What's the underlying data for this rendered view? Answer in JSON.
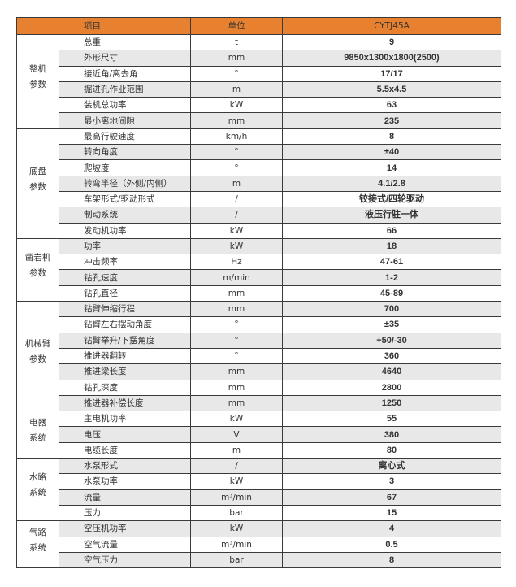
{
  "colors": {
    "header_bg": "#E8812F",
    "alt_row": "#e8e8e8"
  },
  "header": {
    "item": "项目",
    "unit": "单位",
    "value": "CYTJ45A"
  },
  "groups": [
    {
      "name": [
        "整机",
        "参数"
      ],
      "rows": [
        {
          "item": "总重",
          "unit": "t",
          "value": "9"
        },
        {
          "item": "外形尺寸",
          "unit": "mm",
          "value": "9850x1300x1800(2500)"
        },
        {
          "item": "接近角/离去角",
          "unit": "°",
          "value": "17/17"
        },
        {
          "item": "掘进孔作业范围",
          "unit": "m",
          "value": "5.5x4.5"
        },
        {
          "item": "装机总功率",
          "unit": "kW",
          "value": "63"
        },
        {
          "item": "最小离地间隙",
          "unit": "mm",
          "value": "235"
        }
      ]
    },
    {
      "name": [
        "底盘",
        "参数"
      ],
      "rows": [
        {
          "item": "最高行驶速度",
          "unit": "km/h",
          "value": "8"
        },
        {
          "item": "转向角度",
          "unit": "°",
          "value": "±40"
        },
        {
          "item": "爬坡度",
          "unit": "°",
          "value": "14"
        },
        {
          "item": "转弯半径（外侧/内侧）",
          "unit": "m",
          "value": "4.1/2.8"
        },
        {
          "item": "车架形式/驱动形式",
          "unit": "/",
          "value": "铰接式/四轮驱动"
        },
        {
          "item": "制动系统",
          "unit": "/",
          "value": "液压行驻一体"
        },
        {
          "item": "发动机功率",
          "unit": "kW",
          "value": "66"
        }
      ]
    },
    {
      "name": [
        "凿岩机",
        "参数"
      ],
      "rows": [
        {
          "item": "功率",
          "unit": "kW",
          "value": "18"
        },
        {
          "item": "冲击频率",
          "unit": "Hz",
          "value": "47-61"
        },
        {
          "item": "钻孔速度",
          "unit": "m/min",
          "value": "1-2"
        },
        {
          "item": "钻孔直径",
          "unit": "mm",
          "value": "45-89"
        }
      ]
    },
    {
      "name": [
        "机械臂",
        "参数"
      ],
      "rows": [
        {
          "item": "钻臂伸缩行程",
          "unit": "mm",
          "value": "700"
        },
        {
          "item": "钻臂左右摆动角度",
          "unit": "°",
          "value": "±35"
        },
        {
          "item": "钻臂举升/下摆角度",
          "unit": "°",
          "value": "+50/-30"
        },
        {
          "item": "推进器翻转",
          "unit": "°",
          "value": "360"
        },
        {
          "item": "推进梁长度",
          "unit": "mm",
          "value": "4640"
        },
        {
          "item": "钻孔深度",
          "unit": "mm",
          "value": "2800"
        },
        {
          "item": "推进器补偿长度",
          "unit": "mm",
          "value": "1250"
        }
      ]
    },
    {
      "name": [
        "电器",
        "系统"
      ],
      "rows": [
        {
          "item": "主电机功率",
          "unit": "kW",
          "value": "55"
        },
        {
          "item": "电压",
          "unit": "V",
          "value": "380"
        },
        {
          "item": "电缆长度",
          "unit": "m",
          "value": "80"
        }
      ]
    },
    {
      "name": [
        "水路",
        "系统"
      ],
      "rows": [
        {
          "item": "水泵形式",
          "unit": "/",
          "value": "离心式"
        },
        {
          "item": "水泵功率",
          "unit": "kW",
          "value": "3"
        },
        {
          "item": "流量",
          "unit": "m³/min",
          "value": "67"
        },
        {
          "item": "压力",
          "unit": "bar",
          "value": "15"
        }
      ]
    },
    {
      "name": [
        "气路",
        "系统"
      ],
      "rows": [
        {
          "item": "空压机功率",
          "unit": "kW",
          "value": "4"
        },
        {
          "item": "空气流量",
          "unit": "m³/min",
          "value": "0.5"
        },
        {
          "item": "空气压力",
          "unit": "bar",
          "value": "8"
        }
      ]
    }
  ]
}
